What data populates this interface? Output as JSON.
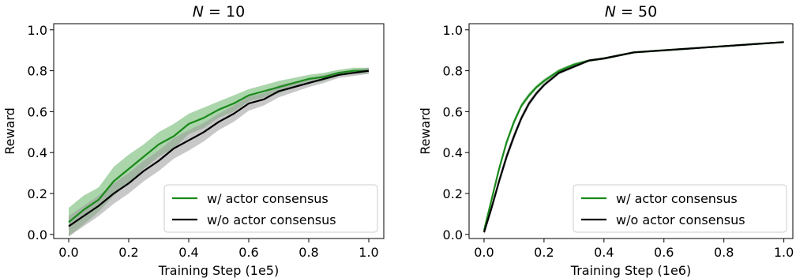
{
  "chart_data": [
    {
      "type": "line",
      "title": "N = 10",
      "xlabel": "Training Step (1e5)",
      "ylabel": "Reward",
      "xlim": [
        -0.05,
        1.05
      ],
      "ylim": [
        -0.02,
        1.03
      ],
      "xticks": [
        "0.0",
        "0.2",
        "0.4",
        "0.6",
        "0.8",
        "1.0"
      ],
      "yticks": [
        "0.0",
        "0.2",
        "0.4",
        "0.6",
        "0.8",
        "1.0"
      ],
      "grid": false,
      "legend": "lower-right",
      "x": [
        0.0,
        0.05,
        0.1,
        0.15,
        0.2,
        0.25,
        0.3,
        0.35,
        0.4,
        0.45,
        0.5,
        0.55,
        0.6,
        0.65,
        0.7,
        0.75,
        0.8,
        0.85,
        0.9,
        0.95,
        1.0
      ],
      "series": [
        {
          "name": "w/ actor consensus",
          "color": "#1a8a1a",
          "band_color": "#66b266",
          "values": [
            0.06,
            0.12,
            0.17,
            0.26,
            0.32,
            0.38,
            0.44,
            0.48,
            0.54,
            0.57,
            0.61,
            0.64,
            0.68,
            0.7,
            0.72,
            0.74,
            0.76,
            0.77,
            0.79,
            0.8,
            0.8
          ],
          "spread": [
            0.07,
            0.07,
            0.06,
            0.07,
            0.07,
            0.06,
            0.06,
            0.06,
            0.05,
            0.05,
            0.04,
            0.04,
            0.03,
            0.03,
            0.03,
            0.025,
            0.02,
            0.02,
            0.015,
            0.015,
            0.015
          ]
        },
        {
          "name": "w/o actor consensus",
          "color": "#000000",
          "band_color": "#9a9a9a",
          "values": [
            0.04,
            0.09,
            0.14,
            0.2,
            0.25,
            0.31,
            0.36,
            0.42,
            0.46,
            0.5,
            0.55,
            0.59,
            0.64,
            0.66,
            0.7,
            0.72,
            0.74,
            0.76,
            0.78,
            0.79,
            0.8
          ],
          "spread": [
            0.05,
            0.05,
            0.05,
            0.05,
            0.05,
            0.05,
            0.05,
            0.05,
            0.05,
            0.045,
            0.04,
            0.04,
            0.035,
            0.03,
            0.03,
            0.025,
            0.02,
            0.02,
            0.015,
            0.015,
            0.015
          ]
        }
      ]
    },
    {
      "type": "line",
      "title": "N = 50",
      "xlabel": "Training Step (1e6)",
      "ylabel": "Reward",
      "xlim": [
        -0.05,
        1.03
      ],
      "ylim": [
        -0.02,
        1.03
      ],
      "xticks": [
        "0.0",
        "0.2",
        "0.4",
        "0.6",
        "0.8",
        "1.0"
      ],
      "yticks": [
        "0.0",
        "0.2",
        "0.4",
        "0.6",
        "0.8",
        "1.0"
      ],
      "grid": false,
      "legend": "lower-right",
      "x": [
        0.0,
        0.025,
        0.05,
        0.075,
        0.1,
        0.125,
        0.15,
        0.175,
        0.2,
        0.25,
        0.3,
        0.35,
        0.4,
        0.5,
        0.6,
        0.7,
        0.8,
        0.9,
        1.0
      ],
      "series": [
        {
          "name": "w/ actor consensus",
          "color": "#1a8a1a",
          "band_color": "#66b266",
          "values": [
            0.02,
            0.17,
            0.32,
            0.45,
            0.55,
            0.63,
            0.68,
            0.72,
            0.75,
            0.8,
            0.83,
            0.85,
            0.86,
            0.89,
            0.9,
            0.91,
            0.92,
            0.93,
            0.94
          ],
          "spread": [
            0.01,
            0.015,
            0.015,
            0.015,
            0.015,
            0.012,
            0.012,
            0.01,
            0.01,
            0.008,
            0.008,
            0.006,
            0.006,
            0.005,
            0.005,
            0.004,
            0.004,
            0.004,
            0.004
          ]
        },
        {
          "name": "w/o actor consensus",
          "color": "#000000",
          "band_color": "#9a9a9a",
          "values": [
            0.01,
            0.13,
            0.26,
            0.38,
            0.48,
            0.57,
            0.64,
            0.69,
            0.73,
            0.79,
            0.82,
            0.85,
            0.86,
            0.89,
            0.9,
            0.91,
            0.92,
            0.93,
            0.94
          ],
          "spread": [
            0.01,
            0.02,
            0.02,
            0.02,
            0.02,
            0.015,
            0.015,
            0.012,
            0.01,
            0.008,
            0.008,
            0.006,
            0.006,
            0.005,
            0.005,
            0.004,
            0.004,
            0.004,
            0.004
          ]
        }
      ]
    }
  ]
}
